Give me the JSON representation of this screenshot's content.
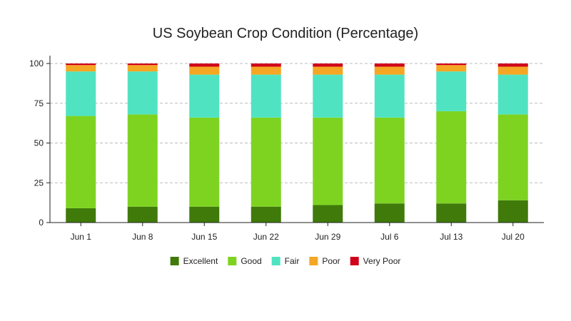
{
  "chart_data": {
    "type": "bar",
    "stacked": true,
    "title": "US Soybean Crop Condition (Percentage)",
    "xlabel": "",
    "ylabel": "",
    "categories": [
      "Jun 1",
      "Jun 8",
      "Jun 15",
      "Jun 22",
      "Jun 29",
      "Jul 6",
      "Jul 13",
      "Jul 20"
    ],
    "ylim": [
      0,
      100
    ],
    "yticks": [
      0,
      25,
      50,
      75,
      100
    ],
    "grid": true,
    "legend_position": "bottom",
    "series": [
      {
        "name": "Excellent",
        "color": "#3f7a0a",
        "values": [
          9,
          10,
          10,
          10,
          11,
          12,
          12,
          14
        ]
      },
      {
        "name": "Good",
        "color": "#7ed321",
        "values": [
          58,
          58,
          56,
          56,
          55,
          54,
          58,
          54
        ]
      },
      {
        "name": "Fair",
        "color": "#50e3c2",
        "values": [
          28,
          27,
          27,
          27,
          27,
          27,
          25,
          25
        ]
      },
      {
        "name": "Poor",
        "color": "#f5a623",
        "values": [
          4,
          4,
          5,
          5,
          5,
          5,
          4,
          5
        ]
      },
      {
        "name": "Very Poor",
        "color": "#d0021b",
        "values": [
          1,
          1,
          2,
          2,
          2,
          2,
          1,
          2
        ]
      }
    ]
  }
}
